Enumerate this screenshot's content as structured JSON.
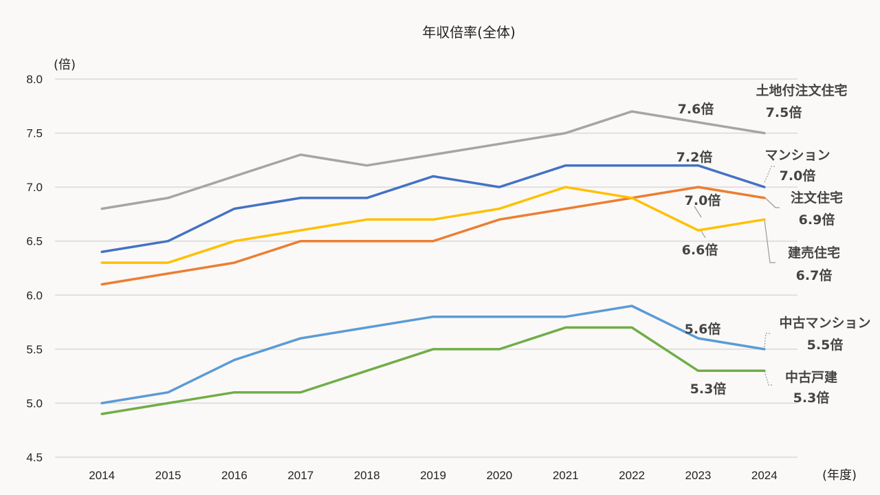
{
  "chart_data": {
    "type": "line",
    "title": "年収倍率(全体)",
    "ylabel": "(倍)",
    "xlabel": "(年度)",
    "ylim": [
      4.5,
      8.0
    ],
    "yticks": [
      "4.5",
      "5.0",
      "5.5",
      "6.0",
      "6.5",
      "7.0",
      "7.5",
      "8.0"
    ],
    "ytick_values": [
      4.5,
      5.0,
      5.5,
      6.0,
      6.5,
      7.0,
      7.5,
      8.0
    ],
    "grid": true,
    "legend": "direct-labels-right",
    "x": [
      "2014",
      "2015",
      "2016",
      "2017",
      "2018",
      "2019",
      "2020",
      "2021",
      "2022",
      "2023",
      "2024"
    ],
    "series": [
      {
        "name": "土地付注文住宅",
        "color": "#a5a5a5",
        "values": [
          6.8,
          6.9,
          7.1,
          7.3,
          7.2,
          7.3,
          7.4,
          7.5,
          7.7,
          7.6,
          7.5
        ],
        "end_label": "7.5倍",
        "point_label_2023": "7.6倍"
      },
      {
        "name": "マンション",
        "color": "#4472c4",
        "values": [
          6.4,
          6.5,
          6.8,
          6.9,
          6.9,
          7.1,
          7.0,
          7.2,
          7.2,
          7.2,
          7.0
        ],
        "end_label": "7.0倍",
        "point_label_2023": "7.2倍"
      },
      {
        "name": "注文住宅",
        "color": "#ed7d31",
        "values": [
          6.1,
          6.2,
          6.3,
          6.5,
          6.5,
          6.5,
          6.7,
          6.8,
          6.9,
          7.0,
          6.9
        ],
        "end_label": "6.9倍",
        "point_label_2023": "7.0倍"
      },
      {
        "name": "建売住宅",
        "color": "#ffc000",
        "values": [
          6.3,
          6.3,
          6.5,
          6.6,
          6.7,
          6.7,
          6.8,
          7.0,
          6.9,
          6.6,
          6.7
        ],
        "end_label": "6.7倍",
        "point_label_2023": "6.6倍"
      },
      {
        "name": "中古マンション",
        "color": "#5b9bd5",
        "values": [
          5.0,
          5.1,
          5.4,
          5.6,
          5.7,
          5.8,
          5.8,
          5.8,
          5.9,
          5.6,
          5.5
        ],
        "end_label": "5.5倍",
        "point_label_2023": "5.6倍"
      },
      {
        "name": "中古戸建",
        "color": "#70ad47",
        "values": [
          4.9,
          5.0,
          5.1,
          5.1,
          5.3,
          5.5,
          5.5,
          5.7,
          5.7,
          5.3,
          5.3
        ],
        "end_label": "5.3倍",
        "point_label_2023": "5.3倍"
      }
    ]
  }
}
